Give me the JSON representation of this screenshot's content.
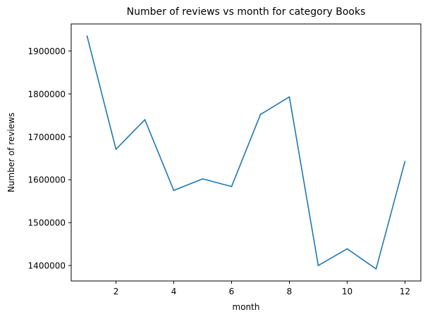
{
  "chart_data": {
    "type": "line",
    "title": "Number of reviews vs month for category Books",
    "xlabel": "month",
    "ylabel": "Number of reviews",
    "x": [
      1,
      2,
      3,
      4,
      5,
      6,
      7,
      8,
      9,
      10,
      11,
      12
    ],
    "series": [
      {
        "values": [
          1935000,
          1671000,
          1740000,
          1575000,
          1602000,
          1584000,
          1752000,
          1793000,
          1400000,
          1439000,
          1392000,
          1643000
        ]
      }
    ],
    "xlim": [
      0.45,
      12.55
    ],
    "ylim": [
      1364000,
      1963000
    ],
    "xticks": [
      2,
      4,
      6,
      8,
      10,
      12
    ],
    "yticks": [
      1400000,
      1500000,
      1600000,
      1700000,
      1800000,
      1900000
    ],
    "ytick_labels": [
      "1400000",
      "1500000",
      "1600000",
      "1700000",
      "1800000",
      "1900000"
    ],
    "grid": false,
    "line_color": "#1f77b4"
  }
}
